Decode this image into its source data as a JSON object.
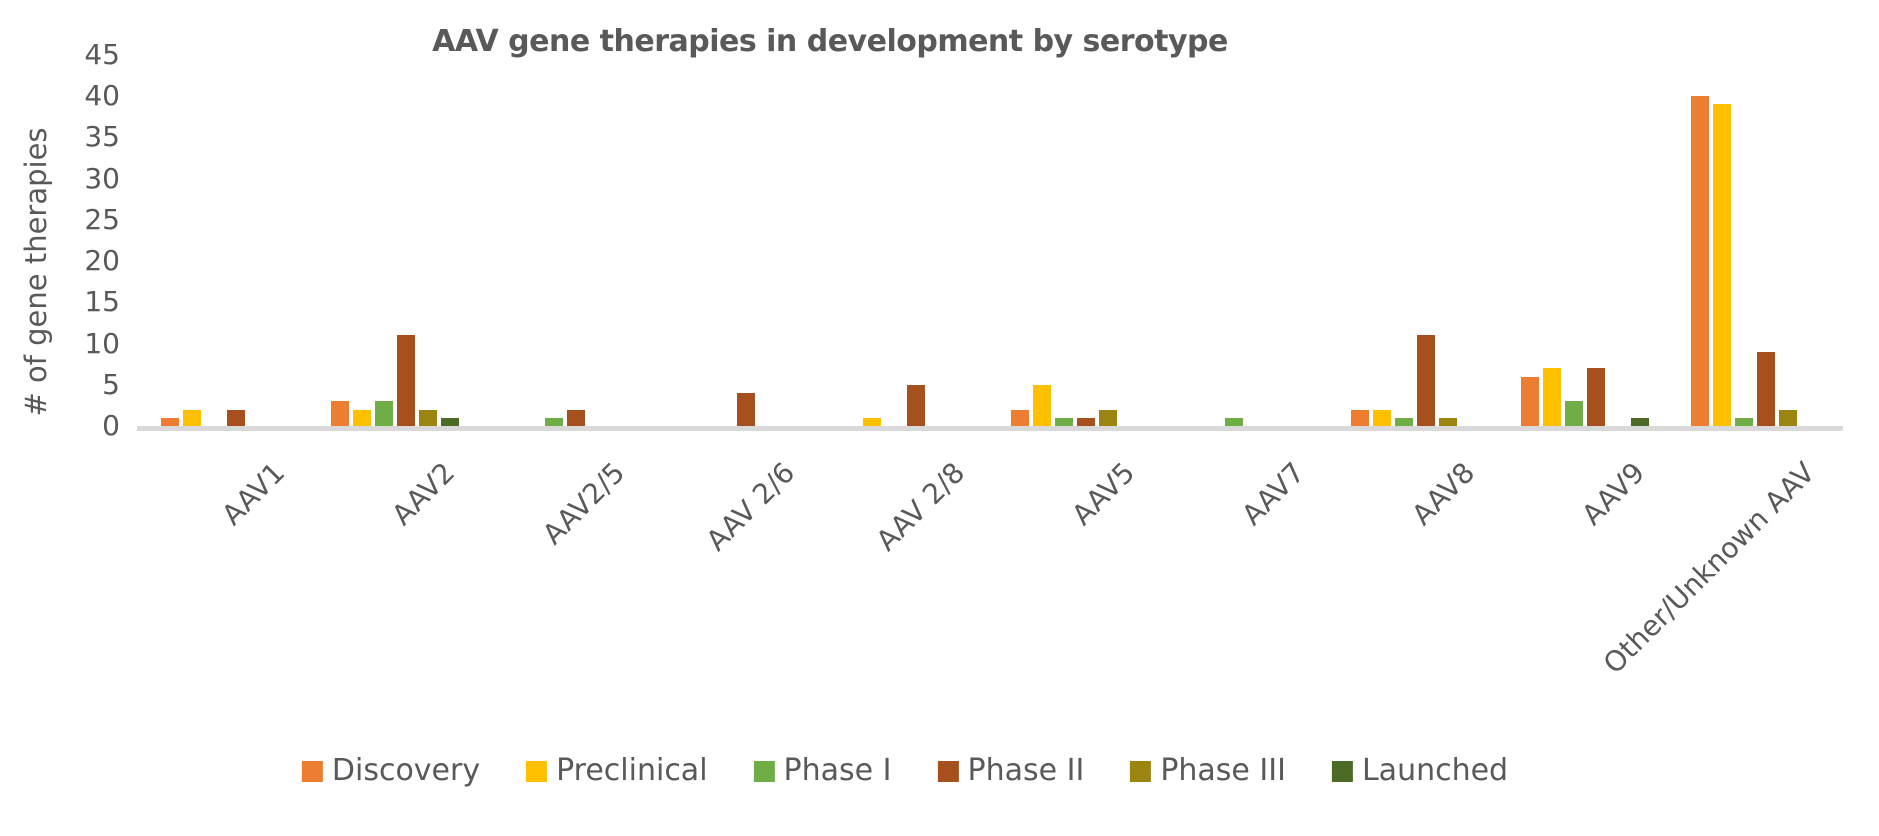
{
  "chart": {
    "title": "AAV gene therapies in development by serotype",
    "y_axis_label": "# of gene therapies"
  },
  "colors": {
    "text": "#595959",
    "axis_line": "#D9D9D9",
    "background": "#FFFFFF"
  },
  "chart_data": {
    "type": "bar",
    "title": "AAV gene therapies in development by serotype",
    "xlabel": "",
    "ylabel": "# of gene therapies",
    "ylim": [
      0,
      45
    ],
    "yticks": [
      0,
      5,
      10,
      15,
      20,
      25,
      30,
      35,
      40,
      45
    ],
    "grid": false,
    "legend_position": "bottom",
    "categories": [
      "AAV1",
      "AAV2",
      "AAV2/5",
      "AAV 2/6",
      "AAV 2/8",
      "AAV5",
      "AAV7",
      "AAV8",
      "AAV9",
      "Other/Unknown AAV"
    ],
    "series": [
      {
        "name": "Discovery",
        "color": "#ED7D31",
        "values": [
          1,
          3,
          0,
          0,
          0,
          2,
          0,
          2,
          6,
          40
        ]
      },
      {
        "name": "Preclinical",
        "color": "#FFC000",
        "values": [
          2,
          2,
          0,
          0,
          1,
          5,
          0,
          2,
          7,
          39
        ]
      },
      {
        "name": "Phase I",
        "color": "#70AD47",
        "values": [
          0,
          3,
          1,
          0,
          0,
          1,
          1,
          1,
          3,
          1
        ]
      },
      {
        "name": "Phase II",
        "color": "#A6511D",
        "values": [
          2,
          11,
          2,
          4,
          5,
          1,
          0,
          11,
          7,
          9
        ]
      },
      {
        "name": "Phase III",
        "color": "#9C8410",
        "values": [
          0,
          2,
          0,
          0,
          0,
          2,
          0,
          1,
          0,
          2
        ]
      },
      {
        "name": "Launched",
        "color": "#4C6B27",
        "values": [
          0,
          1,
          0,
          0,
          0,
          0,
          0,
          0,
          1,
          0
        ]
      }
    ]
  }
}
